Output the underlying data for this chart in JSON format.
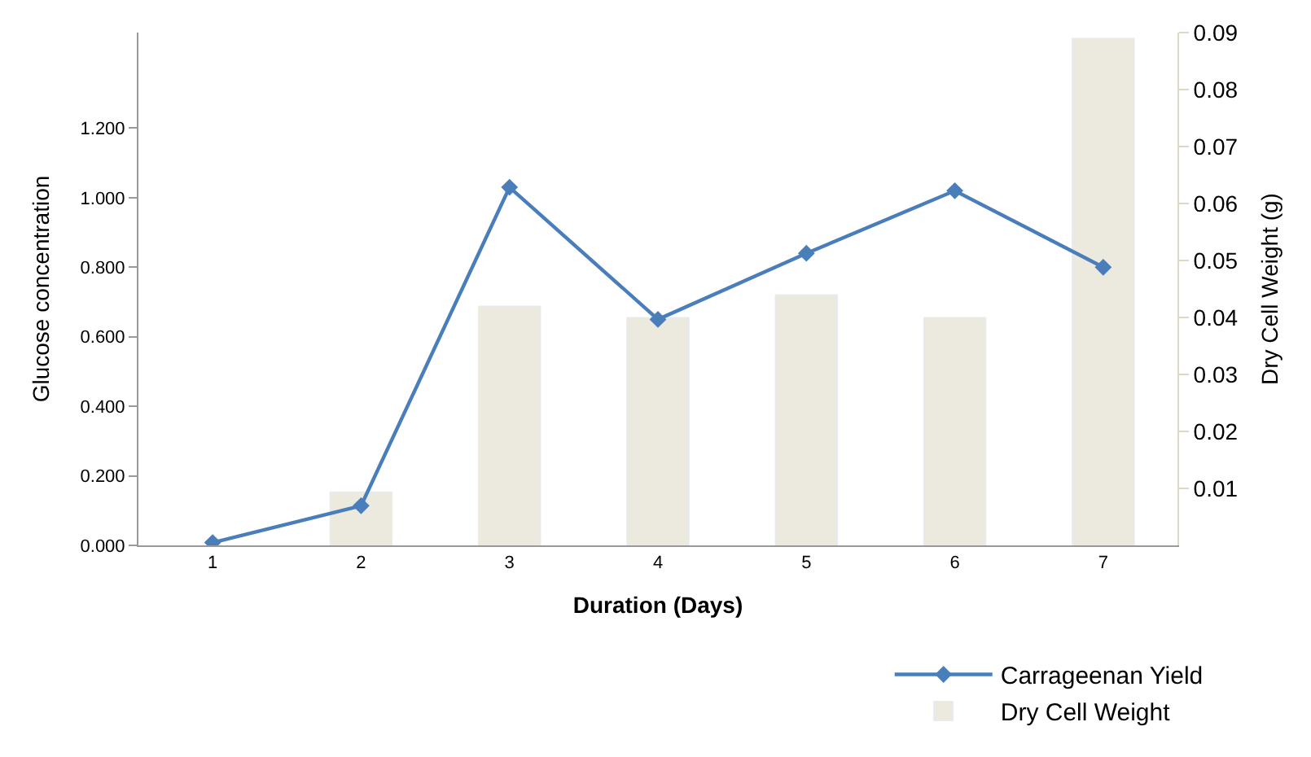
{
  "chart_data": {
    "type": "bar",
    "xlabel": "Duration (Days)",
    "ylabel": "Glucose concentration",
    "y2label": "Dry Cell Weight (g)",
    "categories": [
      "1",
      "2",
      "3",
      "4",
      "5",
      "6",
      "7"
    ],
    "series": [
      {
        "name": "Carrageenan Yield",
        "type": "line",
        "color": "#4a7ebb",
        "marker": "diamond",
        "line_style": "solid",
        "values": [
          0.008,
          0.114,
          1.03,
          0.65,
          0.84,
          1.02,
          0.8
        ]
      },
      {
        "name": "Dry Cell Weight",
        "axis": "y2",
        "color": "#ece9df",
        "values": [
          null,
          0.0094,
          0.042,
          0.04,
          0.044,
          0.04,
          0.089
        ]
      }
    ],
    "ylim": [
      0,
      1.475
    ],
    "yticks": [
      {
        "value": 0,
        "label": "0.000"
      },
      {
        "value": 0.2,
        "label": "0.200"
      },
      {
        "value": 0.4,
        "label": "0.400"
      },
      {
        "value": 0.6,
        "label": "0.600"
      },
      {
        "value": 0.8,
        "label": "0.800"
      },
      {
        "value": 1.0,
        "label": "1.000"
      },
      {
        "value": 1.2,
        "label": "1.200"
      }
    ],
    "y2lim": [
      0,
      0.09
    ],
    "y2ticks": [
      0.01,
      0.02,
      0.03,
      0.04,
      0.05,
      0.06,
      0.07,
      0.08,
      0.09
    ],
    "legend": "bottom right"
  }
}
